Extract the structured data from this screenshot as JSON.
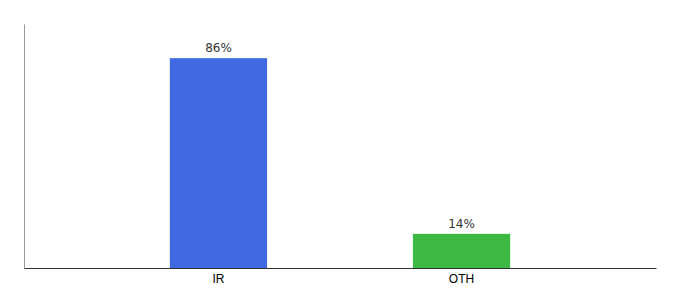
{
  "chart_data": {
    "type": "bar",
    "categories": [
      "IR",
      "OTH"
    ],
    "values": [
      86,
      14
    ],
    "value_labels": [
      "86%",
      "14%"
    ],
    "colors": [
      "#4169e1",
      "#3cb843"
    ],
    "ylim": [
      0,
      100
    ],
    "data_labels": true,
    "tick_labels": "x"
  }
}
